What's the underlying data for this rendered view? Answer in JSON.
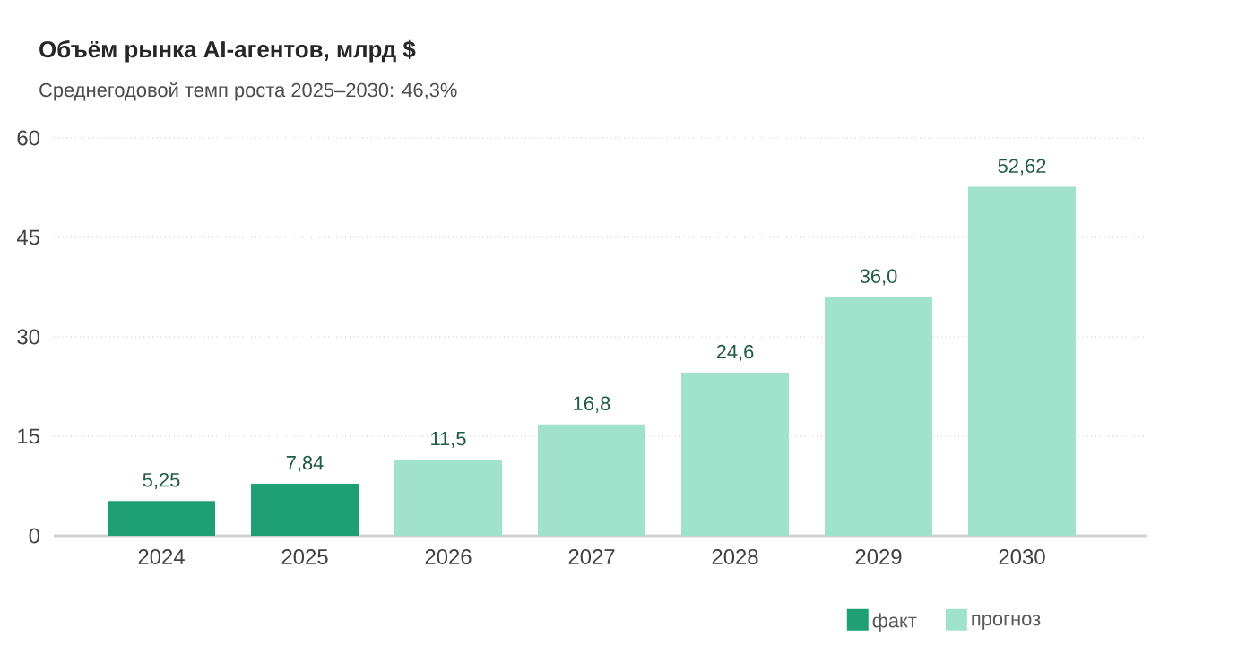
{
  "chart_data": {
    "type": "bar",
    "title": "Объём рынка AI-агентов, млрд $",
    "subtitle": "Среднегодовой темп роста 2025–2030: 46,3%",
    "categories": [
      "2024",
      "2025",
      "2026",
      "2027",
      "2028",
      "2029",
      "2030"
    ],
    "series": [
      {
        "name": "факт",
        "color": "#1fa074",
        "values": [
          5.25,
          7.84,
          null,
          null,
          null,
          null,
          null
        ],
        "value_labels": [
          "5,25",
          "7,84",
          null,
          null,
          null,
          null,
          null
        ]
      },
      {
        "name": "прогноз",
        "color": "#a0e2cb",
        "values": [
          null,
          null,
          11.5,
          16.8,
          24.6,
          36.0,
          52.62
        ],
        "value_labels": [
          null,
          null,
          "11,5",
          "16,8",
          "24,6",
          "36,0",
          "52,62"
        ]
      }
    ],
    "ylim": [
      0,
      60
    ],
    "yticks": [
      0,
      15,
      30,
      45,
      60
    ],
    "grid": "y",
    "legend": "bottom right"
  }
}
